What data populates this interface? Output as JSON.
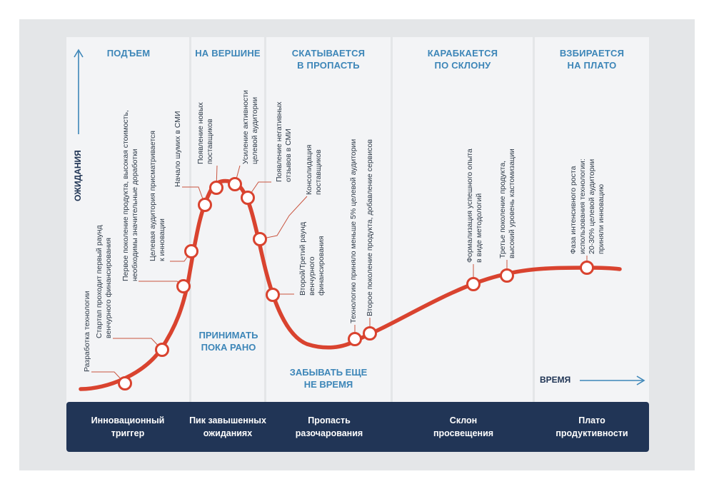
{
  "axes": {
    "y_label": "ОЖИДАНИЯ",
    "x_label": "ВРЕМЯ"
  },
  "phases": [
    {
      "title_lines": [
        "ПОДЪЕМ"
      ]
    },
    {
      "title_lines": [
        "НА ВЕРШИНЕ"
      ]
    },
    {
      "title_lines": [
        "СКАТЫВАЕТСЯ",
        "В ПРОПАСТЬ"
      ]
    },
    {
      "title_lines": [
        "КАРАБКАЕТСЯ",
        "ПО СКЛОНУ"
      ]
    },
    {
      "title_lines": [
        "ВЗБИРАЕТСЯ",
        "НА ПЛАТО"
      ]
    }
  ],
  "advice": {
    "peak": [
      "ПРИНИМАТЬ",
      "ПОКА РАНО"
    ],
    "trough": [
      "ЗАБЫВАТЬ ЕЩЕ",
      "НЕ ВРЕМЯ"
    ]
  },
  "stages": [
    {
      "lines": [
        "Инновационный",
        "триггер"
      ]
    },
    {
      "lines": [
        "Пик завышенных",
        "ожиданиях"
      ]
    },
    {
      "lines": [
        "Пропасть",
        "разочарования"
      ]
    },
    {
      "lines": [
        "Склон",
        "просвещения"
      ]
    },
    {
      "lines": [
        "Плато",
        "продуктивности"
      ]
    }
  ],
  "events": [
    {
      "lines": [
        "Разработка технологии"
      ]
    },
    {
      "lines": [
        "Стартап проходит первый раунд",
        "венчурного финансирования"
      ]
    },
    {
      "lines": [
        "Первое поколение продукта, высокая стоимость,",
        "необходимы значительные доработки"
      ]
    },
    {
      "lines": [
        "Целевая аудитория присматривается",
        "к инновации"
      ]
    },
    {
      "lines": [
        "Начало шумих в СМИ"
      ]
    },
    {
      "lines": [
        "Появление новых",
        "поставщиков"
      ]
    },
    {
      "lines": [
        "Усиление активности",
        "целевой аудитории"
      ]
    },
    {
      "lines": [
        "Появление негативных",
        "отзывов в СМИ"
      ]
    },
    {
      "lines": [
        "Консолидация",
        "поставщиков"
      ]
    },
    {
      "lines": [
        "Второй/Третий раунд",
        "венчурного",
        "финансирования"
      ]
    },
    {
      "lines": [
        "Технологию приняло меньше 5% целевой аудитории"
      ]
    },
    {
      "lines": [
        "Второе поколение продукта, добавление сервисов"
      ]
    },
    {
      "lines": [
        "Формализация успешного опыта",
        "в виде методологий"
      ]
    },
    {
      "lines": [
        "Третье поколение продукта,",
        "высокий уровень кастомизации"
      ]
    },
    {
      "lines": [
        "Фаза интенсивного роста",
        "использования технологии:",
        "20-30% целевой аудитории",
        "приняли инновацию"
      ]
    }
  ],
  "colors": {
    "curve": "#d9432f",
    "accent": "#3d86b8",
    "footer": "#213556"
  }
}
